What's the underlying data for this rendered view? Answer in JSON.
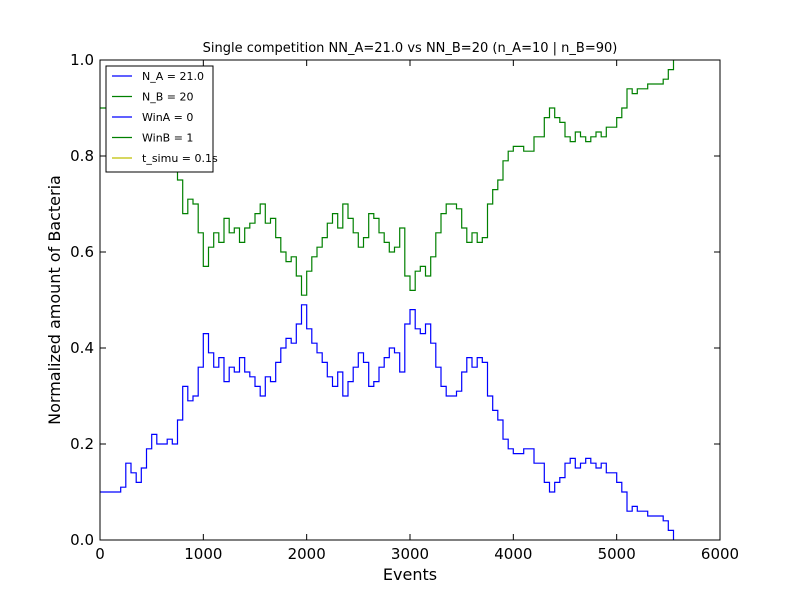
{
  "chart_data": {
    "type": "line",
    "title": "Single competition NN_A=21.0 vs NN_B=20 (n_A=10 | n_B=90)",
    "xlabel": "Events",
    "ylabel": "Normalized amount of Bacteria",
    "xlim": [
      0,
      6000
    ],
    "ylim": [
      0.0,
      1.0
    ],
    "x_ticks": [
      "0",
      "1000",
      "2000",
      "3000",
      "4000",
      "5000",
      "6000"
    ],
    "y_ticks": [
      "0.0",
      "0.2",
      "0.4",
      "0.6",
      "0.8",
      "1.0"
    ],
    "grid": false,
    "legend_position": "top-left",
    "legend": [
      {
        "label": "N_A = 21.0",
        "color": "#0000ff"
      },
      {
        "label": "N_B = 20",
        "color": "#008000"
      },
      {
        "label": "WinA = 0",
        "color": "#0000ff"
      },
      {
        "label": "WinB = 1",
        "color": "#008000"
      },
      {
        "label": "t_simu = 0.1s",
        "color": "#bfbf00"
      }
    ],
    "series": [
      {
        "name": "N_A = 21.0",
        "color": "#0000ff",
        "x": [
          0,
          100,
          200,
          250,
          300,
          350,
          400,
          450,
          500,
          550,
          600,
          650,
          700,
          750,
          800,
          850,
          900,
          950,
          1000,
          1050,
          1100,
          1150,
          1200,
          1250,
          1300,
          1350,
          1400,
          1450,
          1500,
          1550,
          1600,
          1650,
          1700,
          1750,
          1800,
          1850,
          1900,
          1950,
          2000,
          2050,
          2100,
          2150,
          2200,
          2250,
          2300,
          2350,
          2400,
          2450,
          2500,
          2550,
          2600,
          2650,
          2700,
          2750,
          2800,
          2850,
          2900,
          2950,
          3000,
          3050,
          3100,
          3150,
          3200,
          3250,
          3300,
          3350,
          3400,
          3450,
          3500,
          3550,
          3600,
          3650,
          3700,
          3750,
          3800,
          3850,
          3900,
          3950,
          4000,
          4100,
          4200,
          4300,
          4350,
          4400,
          4450,
          4500,
          4550,
          4600,
          4650,
          4700,
          4750,
          4800,
          4850,
          4900,
          4950,
          5000,
          5050,
          5100,
          5150,
          5200,
          5300,
          5400,
          5450,
          5500,
          5550
        ],
        "y": [
          0.1,
          0.1,
          0.11,
          0.16,
          0.14,
          0.12,
          0.15,
          0.19,
          0.22,
          0.2,
          0.2,
          0.21,
          0.2,
          0.25,
          0.32,
          0.29,
          0.3,
          0.36,
          0.43,
          0.39,
          0.36,
          0.38,
          0.33,
          0.36,
          0.35,
          0.38,
          0.35,
          0.34,
          0.32,
          0.3,
          0.34,
          0.33,
          0.37,
          0.4,
          0.42,
          0.41,
          0.45,
          0.49,
          0.44,
          0.41,
          0.39,
          0.37,
          0.34,
          0.32,
          0.35,
          0.3,
          0.33,
          0.36,
          0.39,
          0.37,
          0.32,
          0.33,
          0.36,
          0.38,
          0.4,
          0.39,
          0.35,
          0.45,
          0.48,
          0.44,
          0.43,
          0.45,
          0.41,
          0.36,
          0.32,
          0.3,
          0.3,
          0.31,
          0.35,
          0.38,
          0.36,
          0.38,
          0.37,
          0.3,
          0.27,
          0.25,
          0.21,
          0.19,
          0.18,
          0.19,
          0.16,
          0.12,
          0.1,
          0.12,
          0.13,
          0.16,
          0.17,
          0.15,
          0.16,
          0.17,
          0.16,
          0.15,
          0.16,
          0.14,
          0.14,
          0.12,
          0.1,
          0.06,
          0.07,
          0.06,
          0.05,
          0.05,
          0.04,
          0.02,
          0.0
        ]
      },
      {
        "name": "N_B = 20",
        "color": "#008000",
        "x": [
          0,
          100,
          200,
          250,
          300,
          350,
          400,
          450,
          500,
          550,
          600,
          650,
          700,
          750,
          800,
          850,
          900,
          950,
          1000,
          1050,
          1100,
          1150,
          1200,
          1250,
          1300,
          1350,
          1400,
          1450,
          1500,
          1550,
          1600,
          1650,
          1700,
          1750,
          1800,
          1850,
          1900,
          1950,
          2000,
          2050,
          2100,
          2150,
          2200,
          2250,
          2300,
          2350,
          2400,
          2450,
          2500,
          2550,
          2600,
          2650,
          2700,
          2750,
          2800,
          2850,
          2900,
          2950,
          3000,
          3050,
          3100,
          3150,
          3200,
          3250,
          3300,
          3350,
          3400,
          3450,
          3500,
          3550,
          3600,
          3650,
          3700,
          3750,
          3800,
          3850,
          3900,
          3950,
          4000,
          4100,
          4200,
          4300,
          4350,
          4400,
          4450,
          4500,
          4550,
          4600,
          4650,
          4700,
          4750,
          4800,
          4850,
          4900,
          4950,
          5000,
          5050,
          5100,
          5150,
          5200,
          5300,
          5400,
          5450,
          5500,
          5550
        ],
        "y": [
          0.9,
          0.9,
          0.89,
          0.84,
          0.86,
          0.88,
          0.85,
          0.81,
          0.78,
          0.8,
          0.8,
          0.79,
          0.8,
          0.75,
          0.68,
          0.71,
          0.7,
          0.64,
          0.57,
          0.61,
          0.64,
          0.62,
          0.67,
          0.64,
          0.65,
          0.62,
          0.65,
          0.66,
          0.68,
          0.7,
          0.66,
          0.67,
          0.63,
          0.6,
          0.58,
          0.59,
          0.55,
          0.51,
          0.56,
          0.59,
          0.61,
          0.63,
          0.66,
          0.68,
          0.65,
          0.7,
          0.67,
          0.64,
          0.61,
          0.63,
          0.68,
          0.67,
          0.64,
          0.62,
          0.6,
          0.61,
          0.65,
          0.55,
          0.52,
          0.56,
          0.57,
          0.55,
          0.59,
          0.64,
          0.68,
          0.7,
          0.7,
          0.69,
          0.65,
          0.62,
          0.64,
          0.62,
          0.63,
          0.7,
          0.73,
          0.75,
          0.79,
          0.81,
          0.82,
          0.81,
          0.84,
          0.88,
          0.9,
          0.88,
          0.87,
          0.84,
          0.83,
          0.85,
          0.84,
          0.83,
          0.84,
          0.85,
          0.84,
          0.86,
          0.86,
          0.88,
          0.9,
          0.94,
          0.93,
          0.94,
          0.95,
          0.95,
          0.96,
          0.98,
          1.0
        ]
      }
    ]
  }
}
